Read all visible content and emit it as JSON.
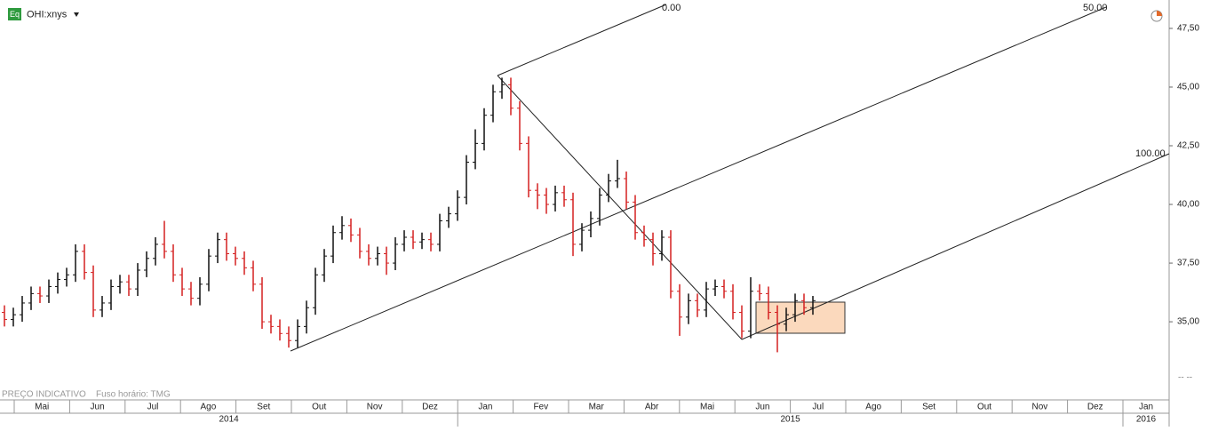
{
  "chart_data": {
    "type": "ohlc",
    "symbol": "OHI:xnys",
    "icon": "Eq",
    "footer_left": "PREÇO INDICATIVO",
    "footer_tz": "Fuso horário: TMG",
    "y_axis_footer": "-- --",
    "annotations": [
      "0.00",
      "50.00",
      "100.00"
    ],
    "up_color": "#111111",
    "down_color": "#d42020",
    "ylim": [
      32.05,
      48.71
    ],
    "yticks": [
      {
        "value": 35,
        "label": "35,00"
      },
      {
        "value": 37.5,
        "label": "37,50"
      },
      {
        "value": 40,
        "label": "40,00"
      },
      {
        "value": 42.5,
        "label": "42,50"
      },
      {
        "value": 45,
        "label": "45,00"
      },
      {
        "value": 47.5,
        "label": "47,50"
      }
    ],
    "categories": [
      "Mai",
      "Jun",
      "Jul",
      "Ago",
      "Set",
      "Out",
      "Nov",
      "Dez",
      "Jan",
      "Fev",
      "Mar",
      "Abr",
      "Mai",
      "Jun",
      "Jul",
      "Ago",
      "Set",
      "Out",
      "Nov",
      "Dez",
      "Jan"
    ],
    "years": [
      "2014",
      "2015",
      "2016"
    ],
    "open": [
      35.4,
      35.1,
      35.3,
      35.8,
      36.2,
      36.1,
      36.5,
      36.8,
      37.0,
      38.0,
      37.1,
      35.5,
      35.8,
      36.5,
      36.7,
      36.4,
      37.2,
      37.7,
      38.3,
      38.0,
      37.0,
      36.4,
      36.0,
      36.6,
      37.8,
      38.5,
      37.9,
      37.7,
      37.3,
      36.6,
      35.0,
      34.8,
      34.5,
      34.2,
      34.8,
      35.6,
      37.0,
      37.8,
      38.8,
      39.1,
      38.7,
      38.0,
      37.7,
      37.9,
      37.5,
      38.3,
      38.6,
      38.4,
      38.5,
      38.3,
      39.3,
      39.6,
      40.3,
      41.8,
      42.6,
      43.8,
      44.8,
      45.1,
      44.1,
      42.6,
      40.6,
      40.4,
      40.0,
      40.5,
      40.2,
      38.3,
      38.9,
      39.4,
      40.4,
      41.0,
      41.1,
      40.1,
      38.8,
      38.5,
      37.9,
      38.6,
      36.3,
      35.2,
      35.9,
      35.5,
      36.4,
      36.5,
      36.3,
      35.4,
      34.6,
      36.3,
      36.2,
      35.4,
      34.9,
      35.3,
      35.9,
      35.6
    ],
    "high": [
      35.7,
      35.6,
      36.1,
      36.5,
      36.5,
      36.8,
      37.1,
      37.3,
      38.3,
      38.3,
      37.4,
      36.1,
      36.8,
      37.0,
      37.0,
      37.5,
      38.0,
      38.6,
      39.3,
      38.3,
      37.3,
      36.7,
      36.9,
      38.1,
      38.8,
      38.8,
      38.2,
      38.0,
      37.6,
      36.9,
      35.3,
      35.1,
      34.8,
      35.1,
      35.9,
      37.3,
      38.1,
      39.1,
      39.5,
      39.4,
      39.0,
      38.3,
      38.2,
      38.2,
      38.6,
      38.9,
      38.9,
      38.8,
      38.8,
      39.6,
      39.9,
      40.6,
      42.1,
      43.2,
      44.1,
      45.1,
      45.4,
      45.4,
      44.4,
      42.9,
      40.9,
      40.7,
      40.8,
      40.8,
      40.5,
      39.2,
      39.7,
      40.7,
      41.3,
      41.9,
      41.4,
      40.4,
      39.1,
      38.8,
      38.9,
      38.9,
      36.6,
      36.2,
      36.2,
      36.7,
      36.8,
      36.8,
      36.6,
      35.7,
      36.9,
      36.6,
      36.5,
      35.7,
      35.6,
      36.2,
      36.2,
      36.1
    ],
    "low": [
      34.8,
      34.8,
      35.0,
      35.5,
      35.8,
      35.8,
      36.2,
      36.5,
      36.7,
      36.8,
      35.2,
      35.2,
      35.5,
      36.2,
      36.1,
      36.1,
      36.9,
      37.4,
      37.7,
      36.7,
      36.1,
      35.7,
      35.7,
      36.3,
      37.5,
      37.6,
      37.4,
      37.0,
      36.3,
      34.7,
      34.5,
      34.2,
      33.9,
      33.9,
      34.5,
      35.3,
      36.7,
      37.5,
      38.5,
      38.4,
      37.7,
      37.4,
      37.4,
      37.0,
      37.2,
      38.0,
      38.1,
      38.1,
      38.0,
      38.0,
      39.0,
      39.3,
      40.0,
      41.5,
      42.3,
      43.5,
      44.5,
      43.8,
      42.3,
      40.3,
      39.8,
      39.6,
      39.7,
      39.9,
      37.8,
      38.0,
      38.6,
      39.1,
      40.1,
      40.7,
      39.8,
      38.5,
      38.2,
      37.4,
      37.6,
      36.0,
      34.4,
      34.9,
      35.2,
      35.2,
      36.1,
      36.0,
      35.1,
      34.3,
      34.3,
      35.9,
      35.1,
      33.7,
      34.6,
      35.0,
      35.3,
      35.3
    ],
    "close": [
      35.1,
      35.3,
      35.8,
      36.2,
      36.1,
      36.5,
      36.8,
      37.0,
      38.0,
      37.1,
      35.5,
      35.8,
      36.5,
      36.7,
      36.4,
      37.2,
      37.7,
      38.3,
      38.0,
      37.0,
      36.4,
      36.0,
      36.6,
      37.8,
      38.5,
      37.9,
      37.7,
      37.3,
      36.6,
      35.0,
      34.8,
      34.5,
      34.2,
      34.8,
      35.6,
      37.0,
      37.8,
      38.8,
      39.1,
      38.7,
      38.0,
      37.7,
      37.9,
      37.5,
      38.3,
      38.6,
      38.4,
      38.5,
      38.3,
      39.3,
      39.6,
      40.3,
      41.8,
      42.6,
      43.8,
      44.8,
      45.1,
      44.1,
      42.6,
      40.6,
      40.4,
      40.0,
      40.5,
      40.2,
      38.3,
      38.9,
      39.4,
      40.4,
      41.0,
      41.1,
      40.1,
      38.8,
      38.5,
      37.9,
      38.6,
      36.3,
      35.2,
      35.9,
      35.5,
      36.4,
      36.5,
      36.3,
      35.4,
      34.6,
      36.3,
      36.2,
      35.4,
      34.9,
      35.3,
      35.9,
      35.6,
      35.9
    ]
  }
}
